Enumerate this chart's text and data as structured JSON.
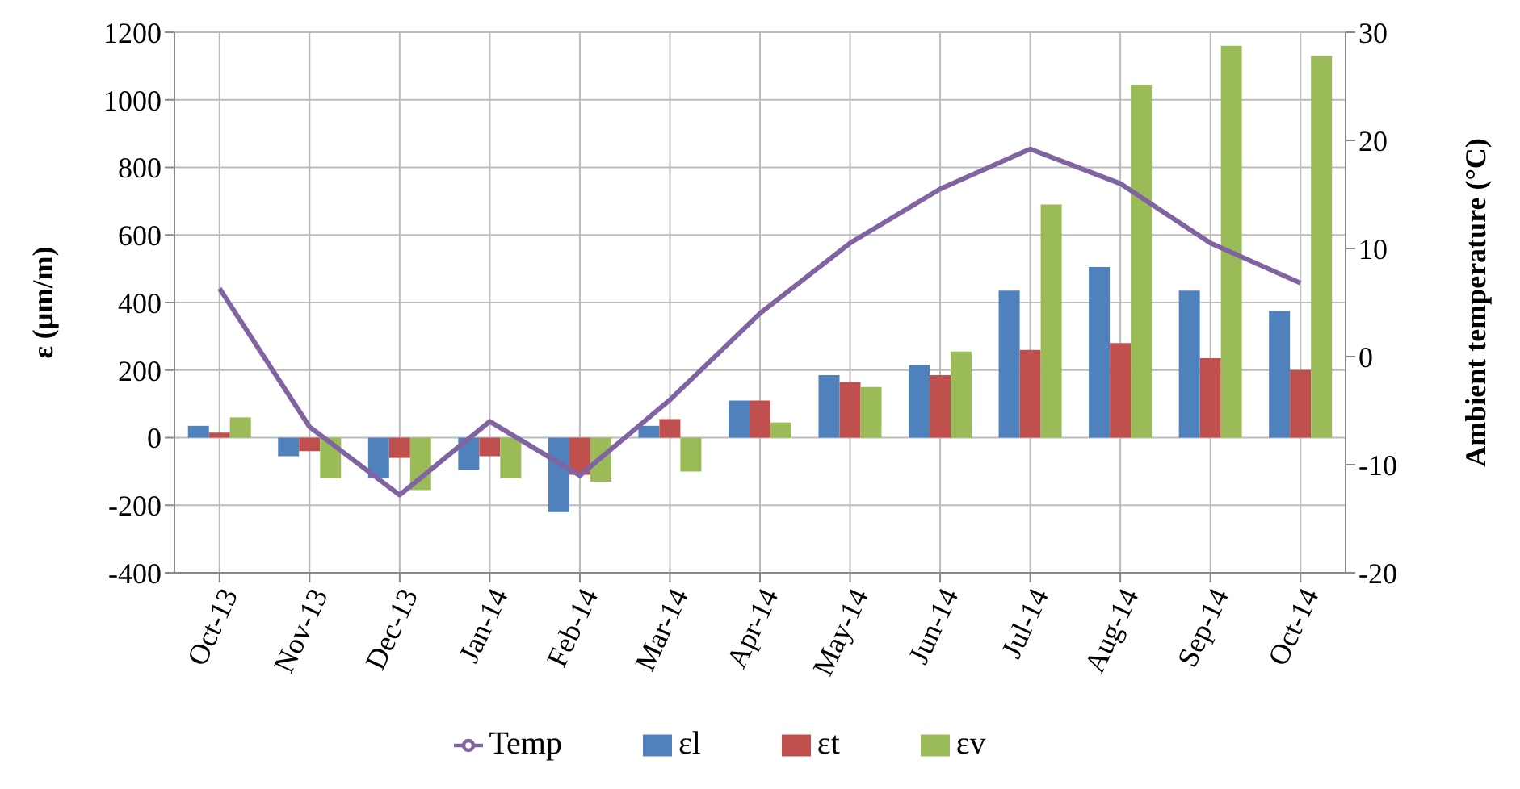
{
  "chart_data": {
    "type": "bar",
    "ylabel": "ε (µm/m)",
    "y2label": "Ambient temperature (°C)",
    "categories": [
      "Oct-13",
      "Nov-13",
      "Dec-13",
      "Jan-14",
      "Feb-14",
      "Mar-14",
      "Apr-14",
      "May-14",
      "Jun-14",
      "Jul-14",
      "Aug-14",
      "Sep-14",
      "Oct-14"
    ],
    "series": [
      {
        "name": "εl",
        "color": "#4f81bd",
        "values": [
          35,
          -55,
          -120,
          -95,
          -220,
          35,
          110,
          185,
          215,
          435,
          505,
          435,
          375
        ]
      },
      {
        "name": "εt",
        "color": "#c0504d",
        "values": [
          15,
          -40,
          -60,
          -55,
          -110,
          55,
          110,
          165,
          185,
          260,
          280,
          235,
          200
        ]
      },
      {
        "name": "εv",
        "color": "#9bbb59",
        "values": [
          60,
          -120,
          -155,
          -120,
          -130,
          -100,
          45,
          150,
          255,
          690,
          1045,
          1160,
          1130
        ]
      },
      {
        "name": "Temp",
        "type": "line",
        "axis": "y2",
        "color": "#8064a2",
        "values": [
          6.3,
          -6.5,
          -12.8,
          -6,
          -11,
          -4,
          4,
          10.5,
          15.5,
          19.2,
          16,
          10.5,
          6.8
        ]
      }
    ],
    "ylim": [
      -400,
      1200
    ],
    "yticks": [
      -400,
      -200,
      0,
      200,
      400,
      600,
      800,
      1000,
      1200
    ],
    "y2lim": [
      -20,
      30
    ],
    "y2ticks": [
      -20,
      -10,
      0,
      10,
      20,
      30
    ],
    "grid": true,
    "legend": "bottom",
    "marker": "none"
  }
}
